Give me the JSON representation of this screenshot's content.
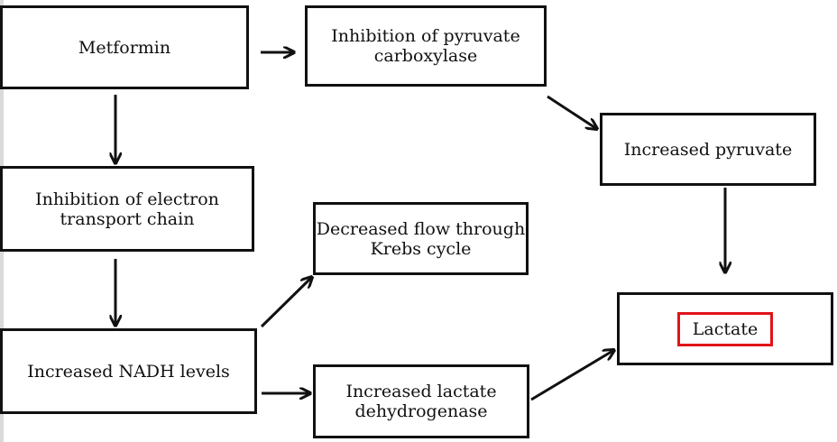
{
  "nodes": {
    "metformin": "Metformin",
    "pyruvate_carboxylase": "Inhibition of pyruvate\ncarboxylase",
    "increased_pyruvate": "Increased pyruvate",
    "electron_transport": "Inhibition of electron\ntransport chain",
    "krebs": "Decreased flow through\nKrebs cycle",
    "nadh": "Increased NADH levels",
    "ldh": "Increased lactate\ndehydrogenase",
    "lactate": "Lactate"
  },
  "colors": {
    "line": "#111111",
    "highlight": "#e0141a"
  }
}
